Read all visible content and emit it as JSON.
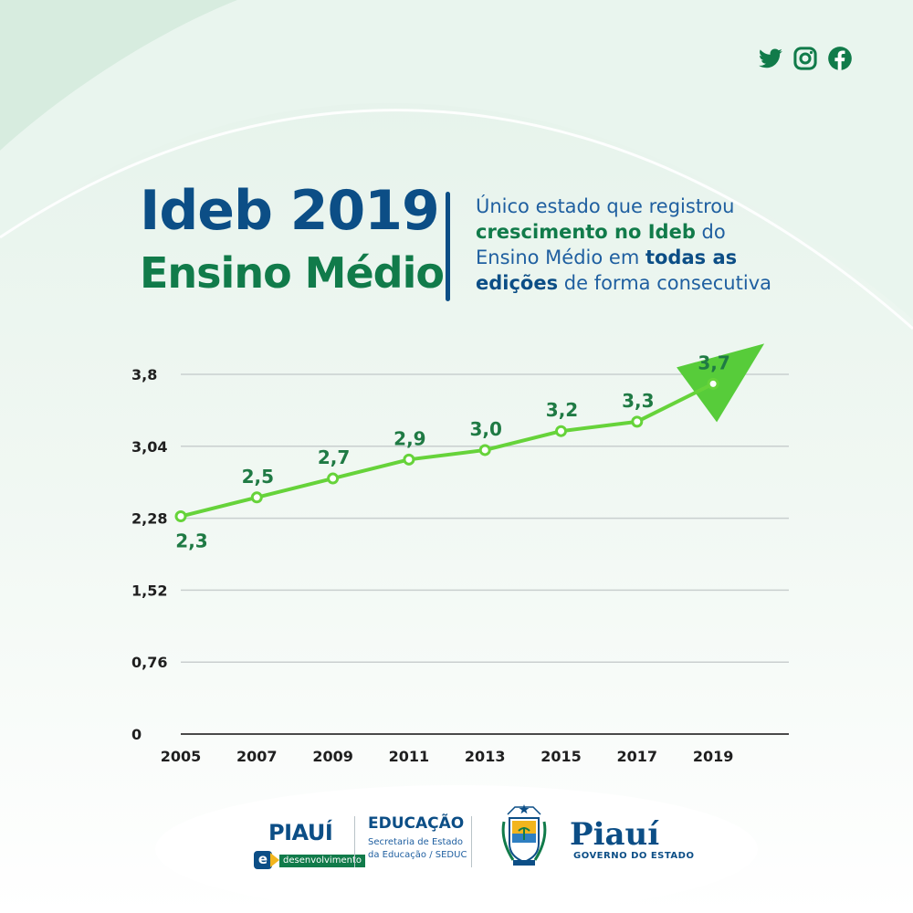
{
  "header": {
    "title_line1": "Ideb 2019",
    "title_line2": "Ensino Médio",
    "description": {
      "part1": "Único estado que registrou ",
      "part2_bold_green": "crescimento no Ideb",
      "part3": " do Ensino Médio em ",
      "part4_bold_blue": "todas as edições",
      "part5": " de forma consecutiva"
    }
  },
  "social": {
    "icons": [
      "twitter-icon",
      "instagram-icon",
      "facebook-icon"
    ]
  },
  "colors": {
    "primary_blue": "#0c4e86",
    "primary_green": "#117b4a",
    "line_green": "#66d33a",
    "label_green": "#1f7a44",
    "accent_yellow": "#f2b51d"
  },
  "chart_data": {
    "type": "line",
    "categories": [
      "2005",
      "2007",
      "2009",
      "2011",
      "2013",
      "2015",
      "2017",
      "2019"
    ],
    "values": [
      2.3,
      2.5,
      2.7,
      2.9,
      3.0,
      3.2,
      3.3,
      3.7
    ],
    "data_labels": [
      "2,3",
      "2,5",
      "2,7",
      "2,9",
      "3,0",
      "3,2",
      "3,3",
      "3,7"
    ],
    "yticks": [
      0,
      0.76,
      1.52,
      2.28,
      3.04,
      3.8
    ],
    "ytick_labels": [
      "0",
      "0,76",
      "1,52",
      "2,28",
      "3,04",
      "3,8"
    ],
    "ylim": [
      0,
      3.8
    ],
    "grid": true,
    "title": "",
    "xlabel": "",
    "ylabel": ""
  },
  "footer": {
    "piaui_desenvolvimento": {
      "word": "PIAUÍ",
      "e_letter": "e",
      "tag": "desenvolvimento"
    },
    "educacao": {
      "title": "EDUCAÇÃO",
      "line1": "Secretaria de Estado",
      "line2": "da Educação / SEDUC"
    },
    "governo": {
      "crest_text": "ESTADO DO PIAUÍ",
      "word": "Piauí",
      "subtitle": "GOVERNO DO ESTADO"
    }
  }
}
